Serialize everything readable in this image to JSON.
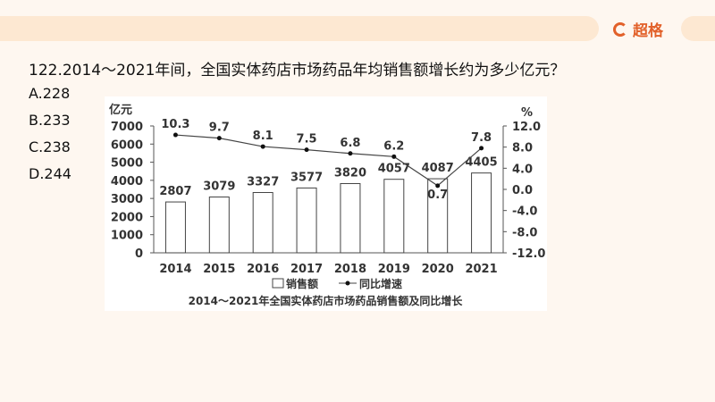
{
  "header": {
    "logo_text": "超格",
    "brand_color": "#e2612a"
  },
  "question": {
    "text": "122.2014～2021年间，全国实体药店市场药品年均销售额增长约为多少亿元？",
    "options": [
      "A.228",
      "B.233",
      "C.238",
      "D.244"
    ]
  },
  "chart_data": {
    "type": "bar+line",
    "title": "2014～2021年全国实体药店市场药品销售额及同比增长",
    "categories": [
      "2014",
      "2015",
      "2016",
      "2017",
      "2018",
      "2019",
      "2020",
      "2021"
    ],
    "y_left": {
      "label": "亿元",
      "range": [
        0,
        7000
      ],
      "ticks": [
        "0",
        "1000",
        "2000",
        "3000",
        "4000",
        "5000",
        "6000",
        "7000"
      ]
    },
    "y_right": {
      "label": "%",
      "range": [
        -12,
        12
      ],
      "ticks": [
        "-12.0",
        "-8.0",
        "-4.0",
        "0.0",
        "4.0",
        "8.0",
        "12.0"
      ]
    },
    "series": [
      {
        "name": "销售额",
        "type": "bar",
        "axis": "left",
        "values": [
          2807,
          3079,
          3327,
          3577,
          3820,
          4057,
          4087,
          4405
        ],
        "labels": [
          "2807",
          "3079",
          "3327",
          "3577",
          "3820",
          "4057",
          "4087",
          "4405"
        ]
      },
      {
        "name": "同比增速",
        "type": "line",
        "axis": "right",
        "values": [
          10.3,
          9.7,
          8.1,
          7.5,
          6.8,
          6.2,
          0.7,
          7.8
        ],
        "labels": [
          "10.3",
          "9.7",
          "8.1",
          "7.5",
          "6.8",
          "6.2",
          "0.7",
          "7.8"
        ]
      }
    ],
    "legend": "bottom",
    "grid": false
  }
}
